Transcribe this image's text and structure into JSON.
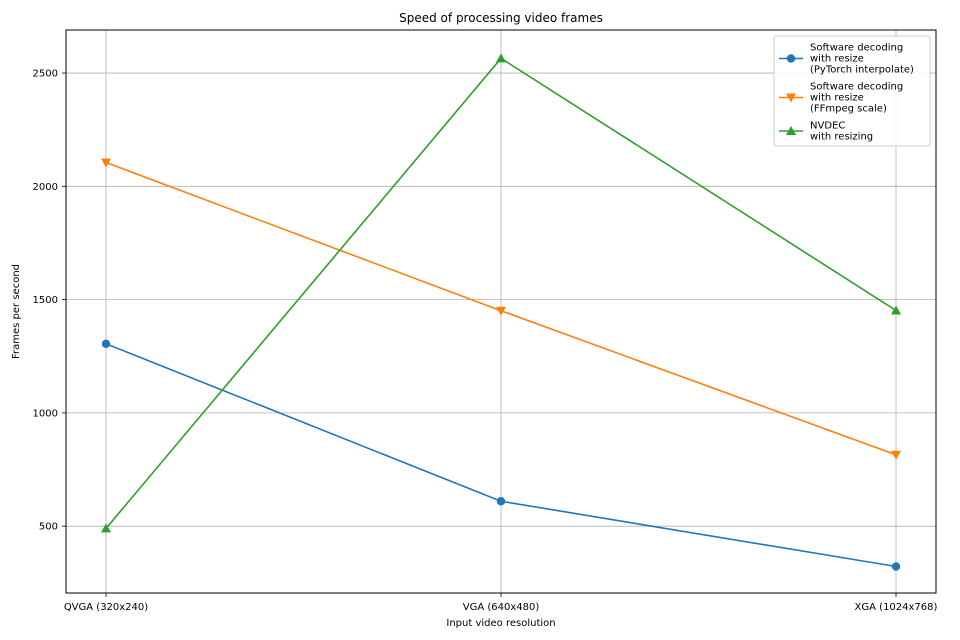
{
  "chart_data": {
    "type": "line",
    "title": "Speed of processing video frames",
    "xlabel": "Input video resolution",
    "ylabel": "Frames per second",
    "categories": [
      "QVGA (320x240)",
      "VGA (640x480)",
      "XGA (1024x768)"
    ],
    "ylim": [
      205,
      2690
    ],
    "yticks": [
      500,
      1000,
      1500,
      2000,
      2500
    ],
    "grid": true,
    "legend_position": "top-right",
    "series": [
      {
        "name": "Software decoding\nwith resize\n(PyTorch interpolate)",
        "color": "#1f77b4",
        "marker": "circle",
        "values": [
          1305,
          610,
          322
        ]
      },
      {
        "name": "Software decoding\nwith resize\n(FFmpeg scale)",
        "color": "#ff7f0e",
        "marker": "triangle-down",
        "values": [
          2105,
          1451,
          815
        ]
      },
      {
        "name": "NVDEC\nwith resizing",
        "color": "#2ca02c",
        "marker": "triangle-up",
        "values": [
          490,
          2565,
          1452
        ]
      }
    ]
  }
}
